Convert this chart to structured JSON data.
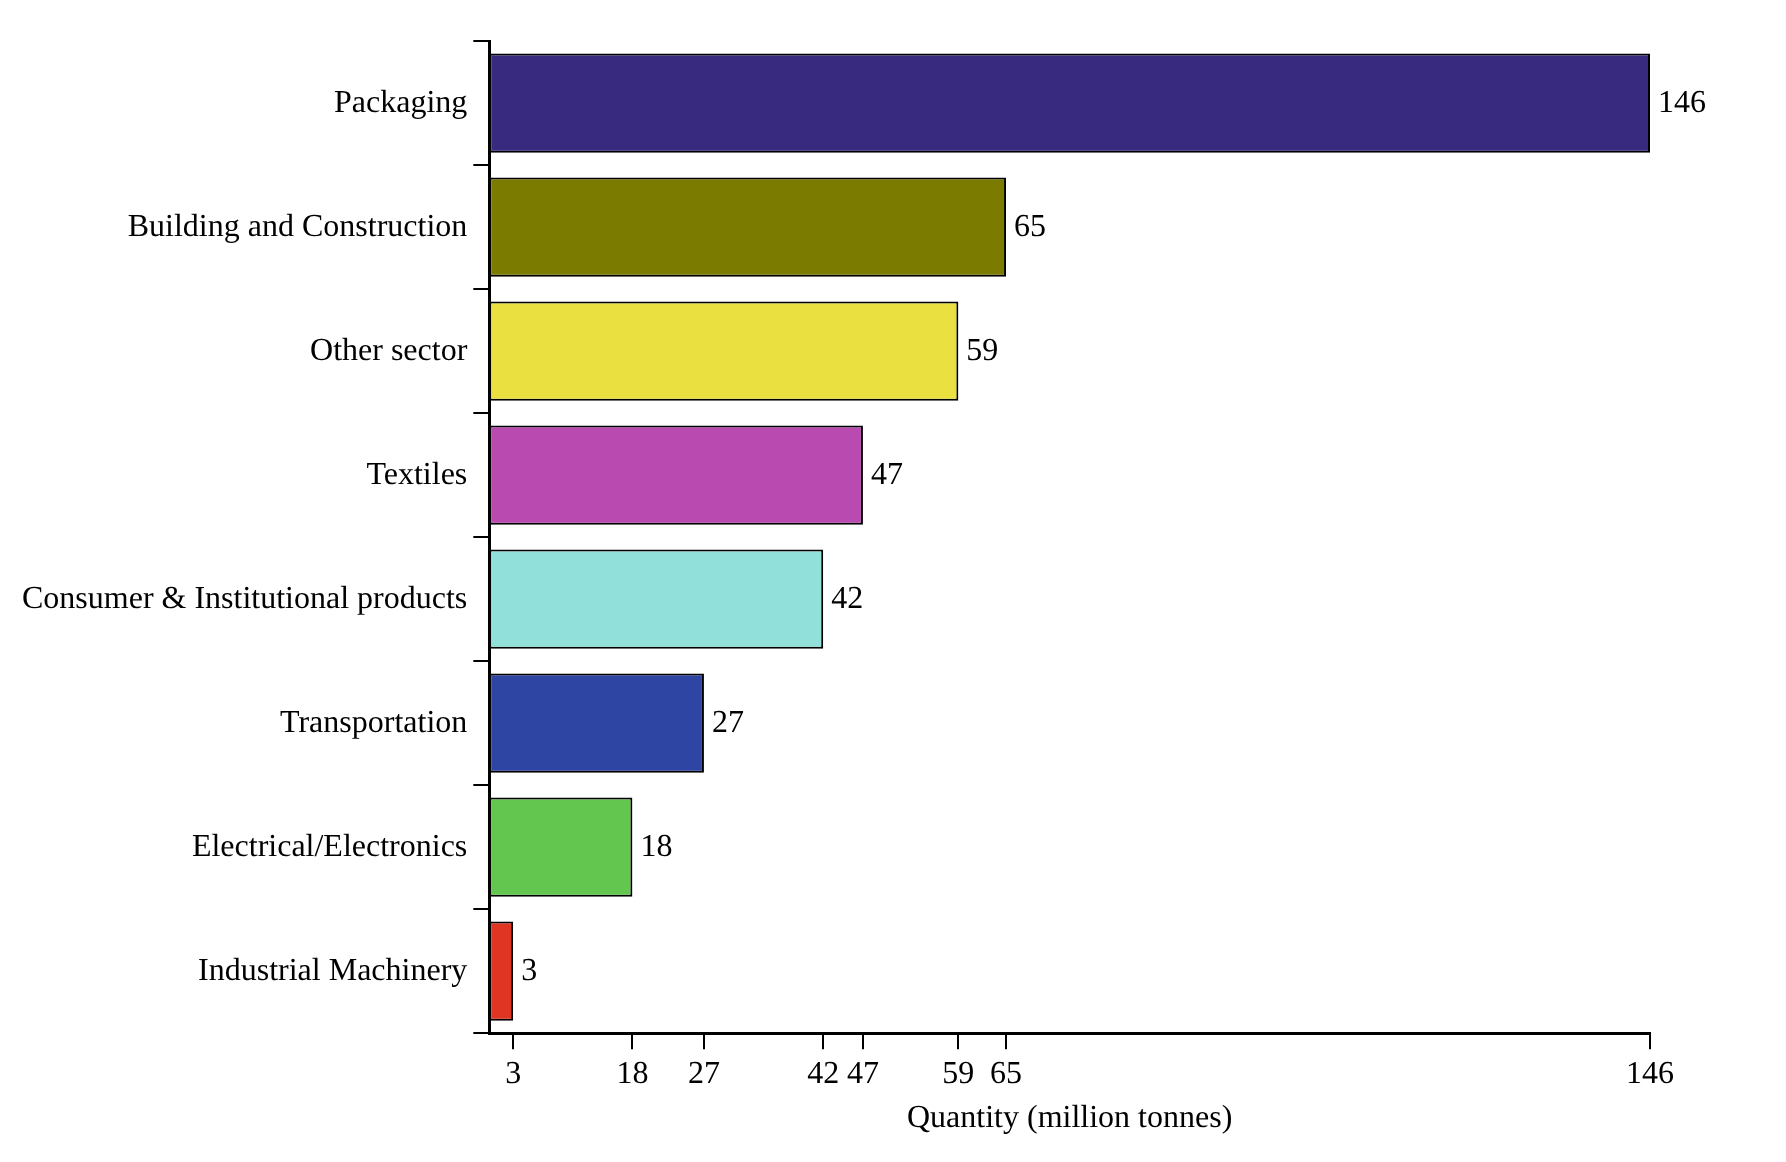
{
  "chart_data": {
    "type": "bar",
    "orientation": "horizontal",
    "xlabel": "Quantity (million tonnes)",
    "categories": [
      "Packaging",
      "Building and Construction",
      "Other sector",
      "Textiles",
      "Consumer & Institutional products",
      "Transportation",
      "Electrical/Electronics",
      "Industrial Machinery"
    ],
    "values": [
      146,
      65,
      59,
      47,
      42,
      27,
      18,
      3
    ],
    "colors": [
      "#372a7f",
      "#7b7b00",
      "#eae040",
      "#b94aaf",
      "#92e0da",
      "#2e45a4",
      "#63c64e",
      "#e03522"
    ],
    "xlim": [
      0,
      146
    ],
    "xticks": [
      3,
      18,
      27,
      42,
      47,
      59,
      65,
      146
    ],
    "data_labels": true,
    "grid": false,
    "legend": false
  }
}
